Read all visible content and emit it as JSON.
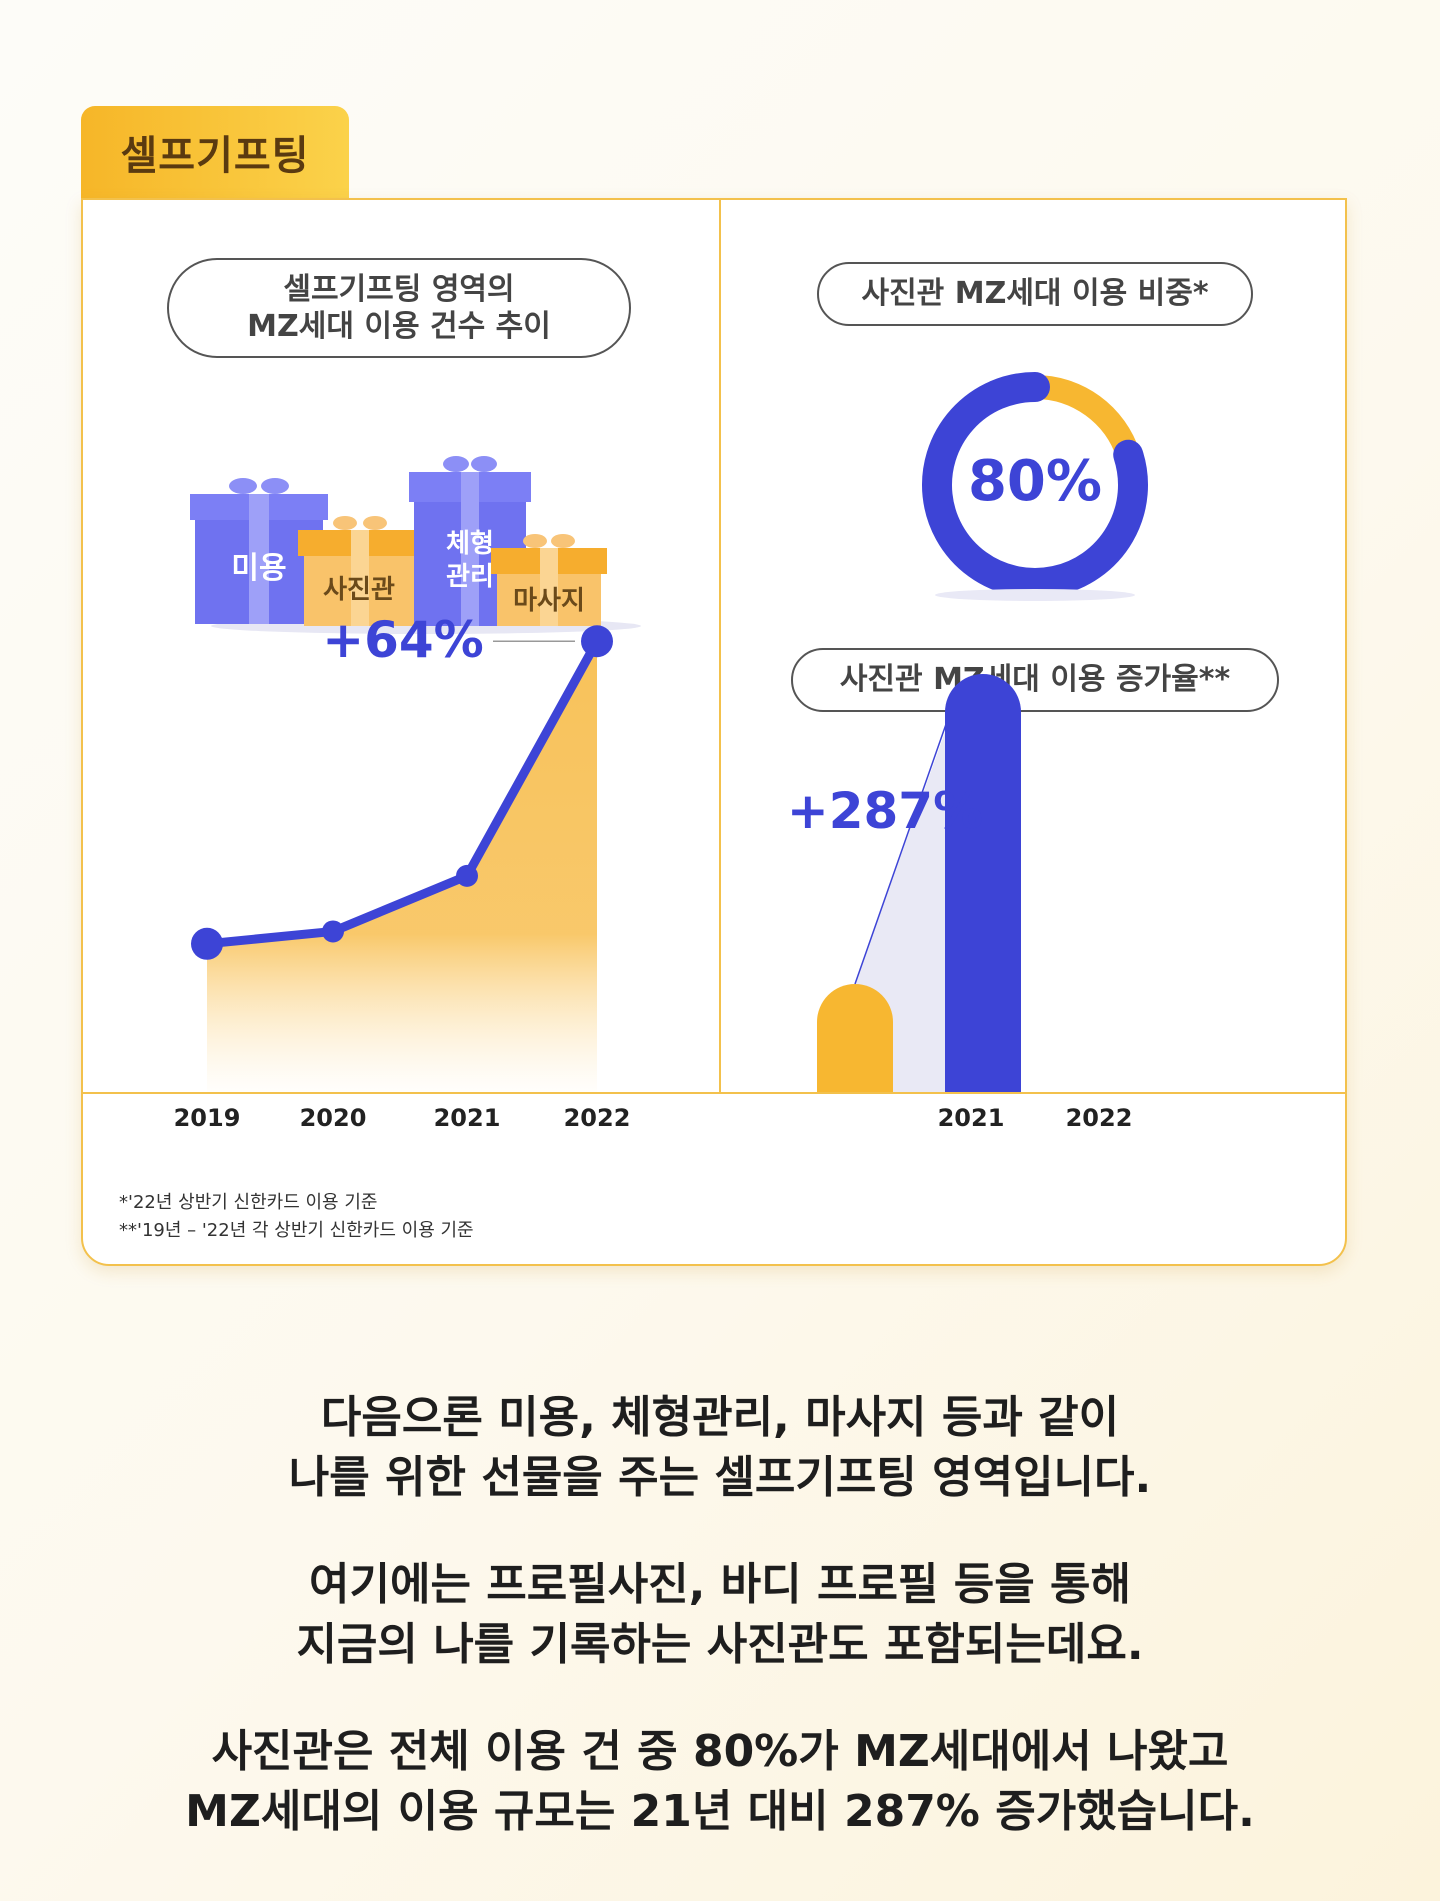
{
  "header": {
    "tab_label": "셀프기프팅"
  },
  "left_panel": {
    "title_line1": "셀프기프팅 영역의",
    "title_line2": "MZ세대 이용 건수 추이",
    "gifts": [
      {
        "label": "미용",
        "color": "#6f72f0"
      },
      {
        "label": "사진관",
        "color": "#f7b23c"
      },
      {
        "label": "체형관리",
        "label_line1": "체형",
        "label_line2": "관리",
        "color": "#6f72f0"
      },
      {
        "label": "마사지",
        "color": "#f7b23c"
      }
    ]
  },
  "right_panel": {
    "donut_title": "사진관 MZ세대 이용 비중*",
    "donut_label": "80%",
    "bar_title": "사진관 MZ세대 이용 증가율**"
  },
  "chart_data": [
    {
      "type": "area",
      "x": [
        "2019",
        "2020",
        "2021",
        "2022"
      ],
      "values": [
        24,
        26,
        35,
        73
      ],
      "ylim": [
        0,
        80
      ],
      "annotation": "+64%",
      "colors": {
        "line": "#3d44d6",
        "fill": "#f8c25a"
      }
    },
    {
      "type": "pie",
      "values": [
        80,
        20
      ],
      "center_label": "80%",
      "colors": [
        "#3d44d6",
        "#f7b731"
      ]
    },
    {
      "type": "bar",
      "categories": [
        "2021",
        "2022"
      ],
      "values": [
        100,
        387
      ],
      "ylim": [
        0,
        400
      ],
      "annotation": "+287%",
      "colors": [
        "#f7b731",
        "#3d44d6"
      ]
    }
  ],
  "footnotes": [
    "*'22년 상반기 신한카드 이용 기준",
    "**'19년 – '22년 각 상반기 신한카드 이용 기준"
  ],
  "body": {
    "lines": [
      "다음으론 미용, 체형관리, 마사지 등과 같이",
      "나를 위한 선물을 주는 셀프기프팅 영역입니다.",
      "여기에는 프로필사진, 바디 프로필 등을 통해",
      "지금의 나를 기록하는 사진관도 포함되는데요.",
      "사진관은 전체 이용 건 중 80%가 MZ세대에서 나왔고",
      "MZ세대의 이용 규모는 21년 대비 287% 증가했습니다."
    ]
  }
}
